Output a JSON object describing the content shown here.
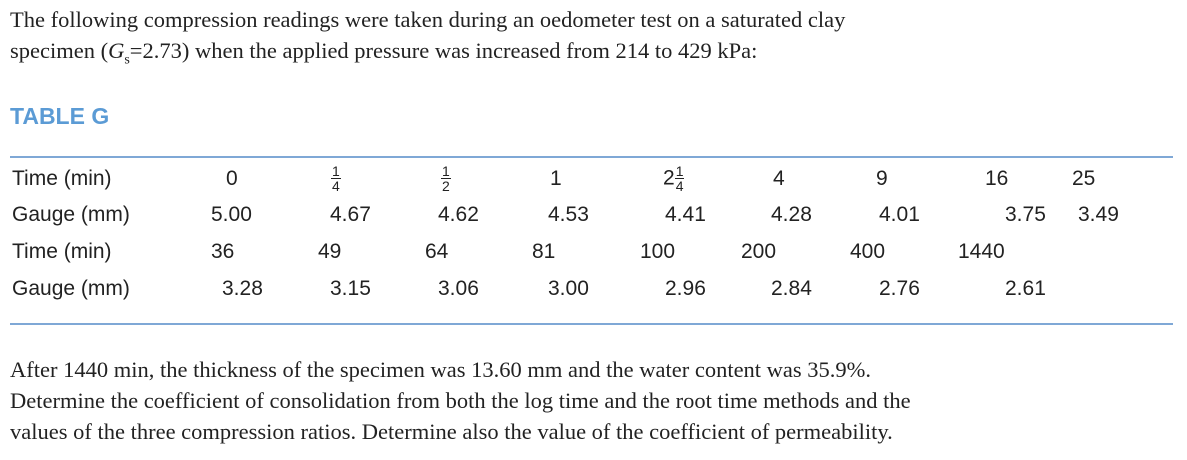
{
  "intro": {
    "line1": "The following compression readings were taken during an oedometer test on a saturated clay",
    "line2_pre": "specimen (",
    "line2_var": "G",
    "line2_sub": "s",
    "line2_post": "=2.73) when the applied pressure was increased from 214 to 429 kPa:"
  },
  "table": {
    "title": "TABLE G",
    "row1": {
      "label": "Time (min)",
      "c0": "0",
      "c1_num": "1",
      "c1_den": "4",
      "c2_num": "1",
      "c2_den": "2",
      "c3": "1",
      "c4_int": "2",
      "c4_num": "1",
      "c4_den": "4",
      "c5": "4",
      "c6": "9",
      "c7": "16",
      "c8": "25"
    },
    "row2": {
      "label": "Gauge (mm)",
      "values": [
        "5.00",
        "4.67",
        "4.62",
        "4.53",
        "4.41",
        "4.28",
        "4.01",
        "3.75",
        "3.49"
      ]
    },
    "row3": {
      "label": "Time (min)",
      "values": [
        "36",
        "49",
        "64",
        "81",
        "100",
        "200",
        "400",
        "1440"
      ]
    },
    "row4": {
      "label": "Gauge (mm)",
      "values": [
        "3.28",
        "3.15",
        "3.06",
        "3.00",
        "2.96",
        "2.84",
        "2.76",
        "2.61"
      ]
    }
  },
  "outro": {
    "line1": "After 1440 min, the thickness of the specimen was 13.60 mm and the water content was 35.9%.",
    "line2": "Determine the coefficient of consolidation from both the log time and the root time methods and the",
    "line3": "values of the three compression ratios. Determine also the value of the coefficient of permeability."
  }
}
